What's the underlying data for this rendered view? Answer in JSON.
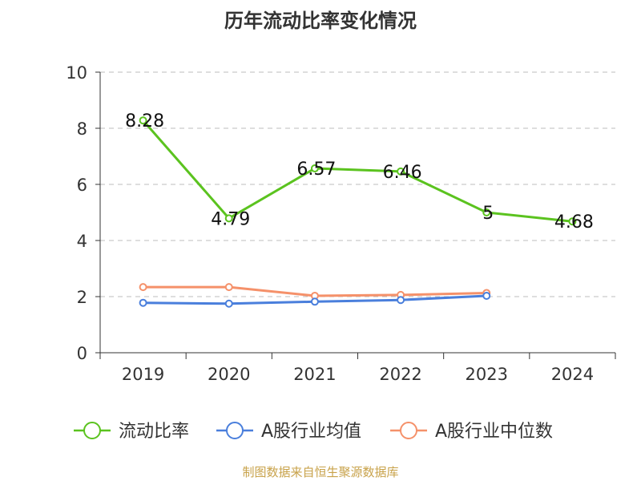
{
  "chart_data": {
    "type": "line",
    "title": "历年流动比率变化情况",
    "categories": [
      "2019",
      "2020",
      "2021",
      "2022",
      "2023",
      "2024"
    ],
    "ylim": [
      0,
      10
    ],
    "yticks": [
      0,
      2,
      4,
      6,
      8,
      10
    ],
    "grid": "horizontal dashed",
    "legend_position": "bottom",
    "series": [
      {
        "name": "流动比率",
        "color": "#5bc31f",
        "values": [
          8.28,
          4.79,
          6.57,
          6.46,
          5,
          4.68
        ],
        "labels": [
          "8.28",
          "4.79",
          "6.57",
          "6.46",
          "5",
          "4.68"
        ]
      },
      {
        "name": "A股行业均值",
        "color": "#4a7fdc",
        "values": [
          1.78,
          1.75,
          1.82,
          1.88,
          2.03,
          null
        ]
      },
      {
        "name": "A股行业中位数",
        "color": "#f5916a",
        "values": [
          2.34,
          2.34,
          2.03,
          2.06,
          2.13,
          null
        ]
      }
    ]
  },
  "source_note": "制图数据来自恒生聚源数据库"
}
